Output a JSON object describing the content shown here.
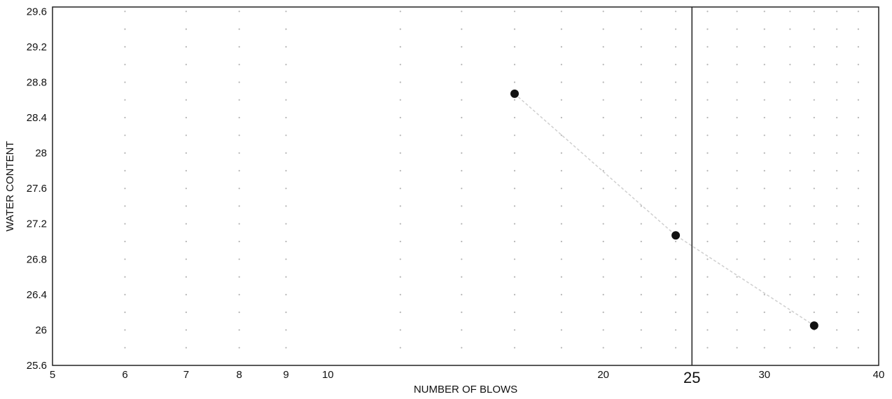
{
  "chart_data": {
    "type": "scatter",
    "xscale": "log",
    "xlabel": "NUMBER OF BLOWS",
    "ylabel": "WATER CONTENT",
    "xlim": [
      5,
      40
    ],
    "ylim": [
      25.6,
      29.65
    ],
    "x_ticks": [
      5,
      6,
      7,
      8,
      9,
      10,
      20,
      30,
      40
    ],
    "x_tick_labels": [
      "5",
      "6",
      "7",
      "8",
      "9",
      "10",
      "20",
      "30",
      "40"
    ],
    "y_ticks": [
      25.6,
      26,
      26.4,
      26.8,
      27.2,
      27.6,
      28,
      28.4,
      28.8,
      29.2,
      29.6
    ],
    "y_tick_labels": [
      "25.6",
      "26",
      "26.4",
      "26.8",
      "27.2",
      "27.6",
      "28",
      "28.4",
      "28.8",
      "29.2",
      "29.6"
    ],
    "grid": true,
    "grid_style": "dotted",
    "reference_line": {
      "x": 25,
      "label": "25"
    },
    "points": [
      {
        "x": 16,
        "y": 28.67
      },
      {
        "x": 24,
        "y": 27.07
      },
      {
        "x": 34,
        "y": 26.05
      }
    ],
    "colors": {
      "point": "#111111",
      "frame": "#222222",
      "grid": "#b5b5b5",
      "trendline": "#cfcfcf"
    }
  }
}
